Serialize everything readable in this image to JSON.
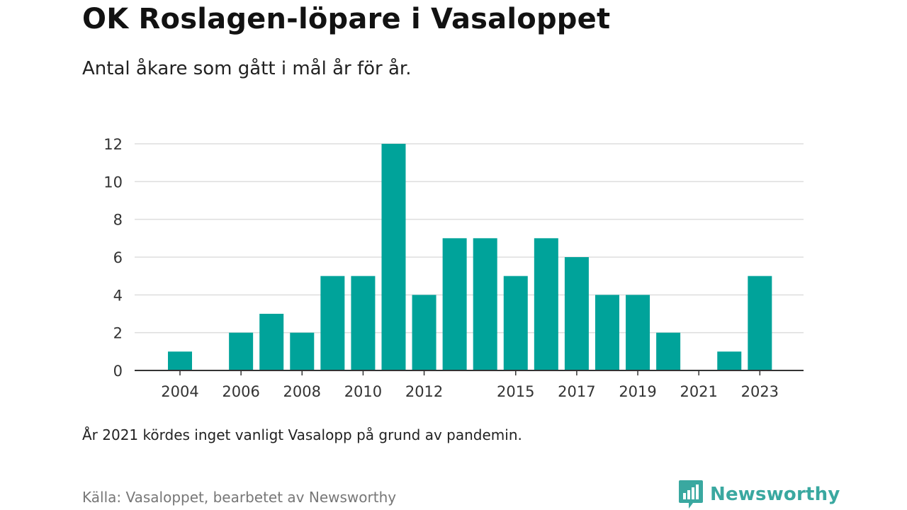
{
  "header": {
    "title": "OK Roslagen-löpare i Vasaloppet",
    "subtitle": "Antal åkare som gått i mål år för år."
  },
  "footer": {
    "note": "År 2021 kördes inget vanligt Vasalopp på grund av pandemin.",
    "source": "Källa: Vasaloppet, bearbetet av Newsworthy",
    "brand": "Newsworthy",
    "brand_icon": "newsworthy-logo-icon"
  },
  "colors": {
    "bar": "#00a39a",
    "grid": "#dddddd",
    "axis": "#333333",
    "brand": "#3aa8a0"
  },
  "chart_data": {
    "type": "bar",
    "categories": [
      "2004",
      "2005",
      "2006",
      "2007",
      "2008",
      "2009",
      "2010",
      "2011",
      "2012",
      "2013",
      "2014",
      "2015",
      "2016",
      "2017",
      "2018",
      "2019",
      "2020",
      "2021",
      "2022",
      "2023"
    ],
    "values": [
      1,
      0,
      2,
      3,
      2,
      5,
      5,
      12,
      4,
      7,
      7,
      5,
      7,
      6,
      4,
      4,
      2,
      0,
      1,
      5
    ],
    "x_tick_labels": [
      "2004",
      "2006",
      "2008",
      "2010",
      "2012",
      "2015",
      "2017",
      "2019",
      "2021",
      "2023"
    ],
    "y_ticks": [
      0,
      2,
      4,
      6,
      8,
      10,
      12
    ],
    "ylim": [
      0,
      12
    ],
    "grid": true,
    "legend": "none",
    "xlabel": "",
    "ylabel": ""
  }
}
